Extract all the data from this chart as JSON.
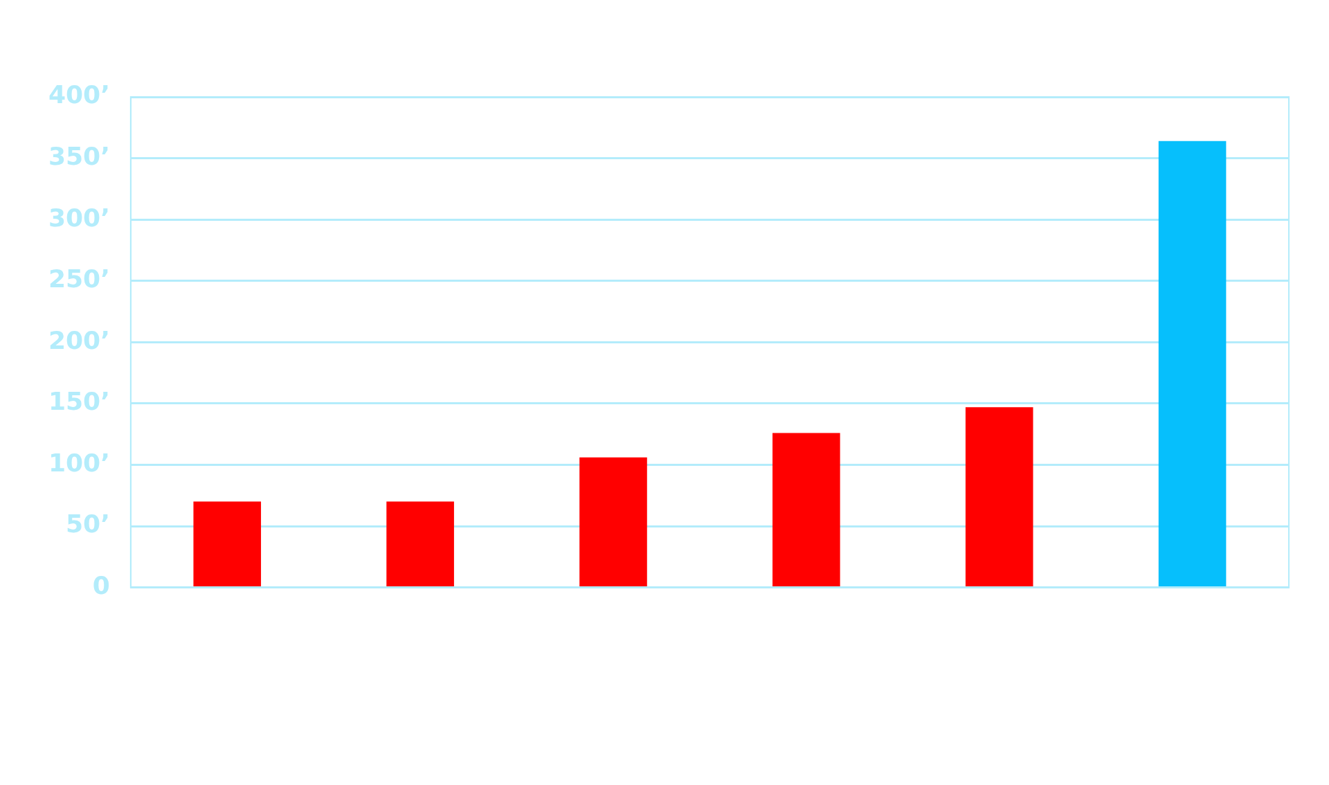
{
  "chart_data": {
    "type": "bar",
    "categories": [
      null,
      null,
      null,
      null,
      null,
      null
    ],
    "values": [
      70,
      70,
      106,
      126,
      147,
      364
    ],
    "colors": [
      "#ff0000",
      "#ff0000",
      "#ff0000",
      "#ff0000",
      "#ff0000",
      "#06bffc"
    ],
    "ylim": [
      0,
      400
    ],
    "yticks": [
      0,
      {
        "value": 50,
        "label": "50’"
      },
      {
        "value": 100,
        "label": "100’"
      },
      {
        "value": 150,
        "label": "150’"
      },
      {
        "value": 200,
        "label": "200’"
      },
      {
        "value": 250,
        "label": "250’"
      },
      {
        "value": 300,
        "label": "300’"
      },
      {
        "value": 350,
        "label": "350’"
      },
      {
        "value": 400,
        "label": "400’"
      }
    ],
    "grid": "y",
    "legend": false
  }
}
